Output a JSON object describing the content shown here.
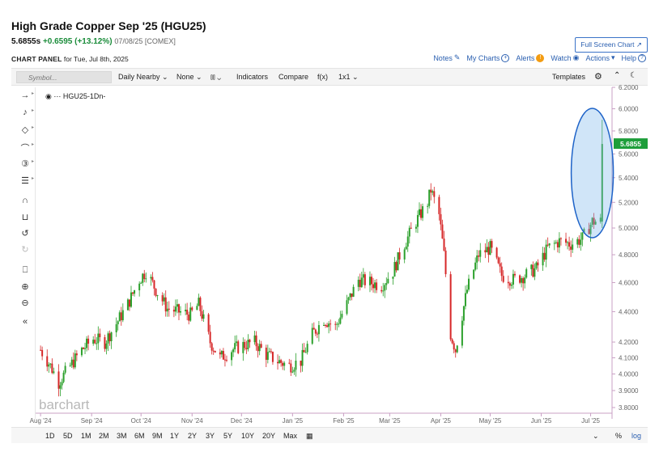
{
  "header": {
    "title": "High Grade Copper Sep '25 (HGU25)",
    "last": "5.6855s",
    "change": "+0.6595 (+13.12%)",
    "date_exchange": "07/08/25 [COMEX]",
    "panel_label": "CHART PANEL",
    "panel_date": "for Tue, Jul 8th, 2025",
    "fullscreen_label": "Full Screen Chart",
    "links": {
      "notes": "Notes",
      "my_charts": "My Charts",
      "alerts": "Alerts",
      "watch": "Watch",
      "actions": "Actions",
      "help": "Help"
    }
  },
  "toolbar": {
    "symbol_placeholder": "Symbol...",
    "aggregation": "Daily Nearby",
    "overlay": "None",
    "indicators": "Indicators",
    "compare": "Compare",
    "fx": "f(x)",
    "layout": "1x1",
    "templates": "Templates"
  },
  "legend": {
    "series": "HGU25",
    "meta": "-1Dn-"
  },
  "range_bar": {
    "ranges": [
      "1D",
      "5D",
      "1M",
      "2M",
      "3M",
      "6M",
      "9M",
      "1Y",
      "2Y",
      "3Y",
      "5Y",
      "10Y",
      "20Y",
      "Max"
    ],
    "percent": "%",
    "log": "log"
  },
  "colors": {
    "up": "#2ca02c",
    "down": "#d62728",
    "last_badge": "#1e9e3a",
    "highlight": "#1e63c8"
  },
  "icons": {
    "left_tools": [
      "crosshair-icon",
      "text-tool-icon",
      "shapes-icon",
      "arc-icon",
      "fibonacci-icon",
      "patterns-icon",
      "magnet-icon",
      "lock-icon",
      "undo-icon",
      "redo-icon",
      "trash-icon",
      "zoom-in-icon",
      "zoom-out-icon",
      "collapse-icon"
    ]
  },
  "chart_data": {
    "type": "candlestick",
    "watermark": "barchart",
    "y_scale": "log",
    "ylim": [
      3.8,
      6.2
    ],
    "yticks": [
      "6.2000",
      "6.0000",
      "5.8000",
      "5.6000",
      "5.4000",
      "5.2000",
      "5.0000",
      "4.8000",
      "4.6000",
      "4.4000",
      "4.2000",
      "4.1000",
      "4.0000",
      "3.9000",
      "3.8000"
    ],
    "x_labels": [
      "Aug '24",
      "Sep '24",
      "Oct '24",
      "Nov '24",
      "Dec '24",
      "Jan '25",
      "Feb '25",
      "Mar '25",
      "Apr '25",
      "May '25",
      "Jun '25",
      "Jul '25"
    ],
    "last_value": "5.6855",
    "last_value_num": 5.6855,
    "approx_close_path": [
      [
        "2024-08-01",
        4.15
      ],
      [
        "2024-08-07",
        4.05
      ],
      [
        "2024-08-12",
        3.95
      ],
      [
        "2024-08-19",
        4.05
      ],
      [
        "2024-08-26",
        4.15
      ],
      [
        "2024-09-02",
        4.22
      ],
      [
        "2024-09-09",
        4.2
      ],
      [
        "2024-09-16",
        4.32
      ],
      [
        "2024-09-23",
        4.45
      ],
      [
        "2024-09-30",
        4.62
      ],
      [
        "2024-10-04",
        4.68
      ],
      [
        "2024-10-10",
        4.55
      ],
      [
        "2024-10-17",
        4.42
      ],
      [
        "2024-10-24",
        4.4
      ],
      [
        "2024-10-31",
        4.38
      ],
      [
        "2024-11-05",
        4.45
      ],
      [
        "2024-11-12",
        4.2
      ],
      [
        "2024-11-18",
        4.1
      ],
      [
        "2024-11-25",
        4.15
      ],
      [
        "2024-12-02",
        4.18
      ],
      [
        "2024-12-09",
        4.2
      ],
      [
        "2024-12-16",
        4.12
      ],
      [
        "2024-12-23",
        4.08
      ],
      [
        "2024-12-30",
        4.05
      ],
      [
        "2025-01-06",
        4.08
      ],
      [
        "2025-01-13",
        4.25
      ],
      [
        "2025-01-20",
        4.35
      ],
      [
        "2025-01-27",
        4.3
      ],
      [
        "2025-02-03",
        4.45
      ],
      [
        "2025-02-10",
        4.62
      ],
      [
        "2025-02-17",
        4.6
      ],
      [
        "2025-02-24",
        4.58
      ],
      [
        "2025-03-03",
        4.68
      ],
      [
        "2025-03-10",
        4.88
      ],
      [
        "2025-03-17",
        5.05
      ],
      [
        "2025-03-24",
        5.2
      ],
      [
        "2025-03-26",
        5.3
      ],
      [
        "2025-03-31",
        5.1
      ],
      [
        "2025-04-03",
        4.8
      ],
      [
        "2025-04-07",
        4.25
      ],
      [
        "2025-04-10",
        4.15
      ],
      [
        "2025-04-17",
        4.55
      ],
      [
        "2025-04-24",
        4.8
      ],
      [
        "2025-05-01",
        4.85
      ],
      [
        "2025-05-08",
        4.65
      ],
      [
        "2025-05-15",
        4.62
      ],
      [
        "2025-05-22",
        4.65
      ],
      [
        "2025-05-29",
        4.7
      ],
      [
        "2025-06-05",
        4.85
      ],
      [
        "2025-06-12",
        4.9
      ],
      [
        "2025-06-19",
        4.88
      ],
      [
        "2025-06-26",
        4.92
      ],
      [
        "2025-07-02",
        5.05
      ],
      [
        "2025-07-07",
        5.05
      ],
      [
        "2025-07-08",
        5.6855
      ]
    ],
    "annotation": "ellipse highlighting final spike"
  }
}
